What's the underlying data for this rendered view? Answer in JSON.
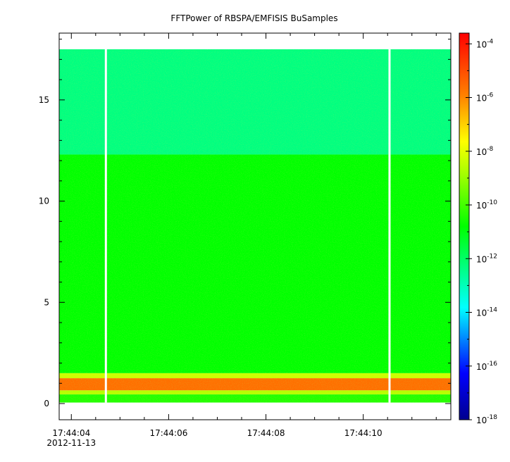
{
  "chart_data": {
    "type": "heatmap",
    "title": "FFTPower of RBSPA/EMFISIS  BuSamples",
    "xlabel": "",
    "ylabel": "",
    "x_range": [
      "17:44:03.75",
      "17:44:11.8"
    ],
    "x_ticks": [
      {
        "value": "17:44:04",
        "label": "17:44:04",
        "sublabel": "2012-11-13"
      },
      {
        "value": "17:44:06",
        "label": "17:44:06",
        "sublabel": ""
      },
      {
        "value": "17:44:08",
        "label": "17:44:08",
        "sublabel": ""
      },
      {
        "value": "17:44:10",
        "label": "17:44:10",
        "sublabel": ""
      }
    ],
    "y_range": [
      -0.8,
      18.3
    ],
    "y_ticks": [
      0,
      5,
      10,
      15
    ],
    "data_extent": {
      "t_start": "17:44:03.75",
      "t_end": "17:44:11.8",
      "f_min": 0.05,
      "f_max": 17.5
    },
    "data_gaps": [
      "17:44:04.71",
      "17:44:10.54"
    ],
    "color_scale": {
      "log": true,
      "range_exponent": [
        -18,
        -3.6
      ],
      "ticks": [
        {
          "exp": -4,
          "base": "10",
          "sup": "-4"
        },
        {
          "exp": -6,
          "base": "10",
          "sup": "-6"
        },
        {
          "exp": -8,
          "base": "10",
          "sup": "-8"
        },
        {
          "exp": -10,
          "base": "10",
          "sup": "-10"
        },
        {
          "exp": -12,
          "base": "10",
          "sup": "-12"
        },
        {
          "exp": -14,
          "base": "10",
          "sup": "-14"
        },
        {
          "exp": -16,
          "base": "10",
          "sup": "-16"
        },
        {
          "exp": -18,
          "base": "10",
          "sup": "-18"
        }
      ]
    },
    "power_profile": [
      {
        "f_min": 12.3,
        "f_max": 17.5,
        "log_power": -12.3
      },
      {
        "f_min": 1.5,
        "f_max": 12.3,
        "log_power": -10.8
      },
      {
        "f_min": 1.25,
        "f_max": 1.5,
        "log_power": -8.3
      },
      {
        "f_min": 0.65,
        "f_max": 1.25,
        "log_power": -5.6
      },
      {
        "f_min": 0.45,
        "f_max": 0.65,
        "log_power": -8.6
      },
      {
        "f_min": 0.05,
        "f_max": 0.45,
        "log_power": -10.4
      }
    ],
    "grid": false
  }
}
